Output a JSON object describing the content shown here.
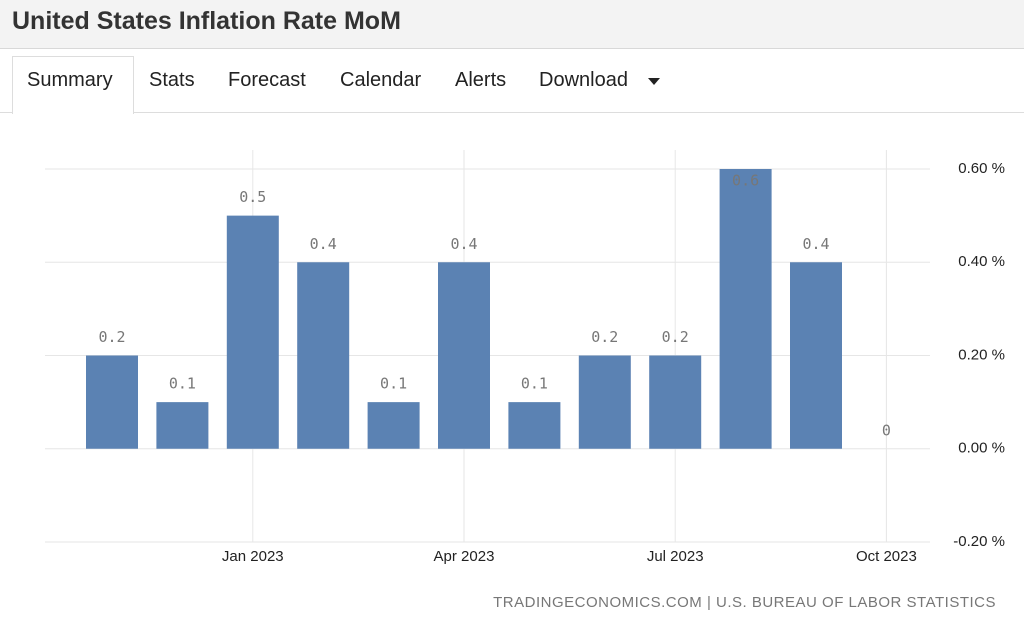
{
  "header": {
    "title": "United States Inflation Rate MoM"
  },
  "tabs": [
    "Summary",
    "Stats",
    "Forecast",
    "Calendar",
    "Alerts",
    "Download"
  ],
  "chart_data": {
    "type": "bar",
    "categories": [
      null,
      null,
      "Jan 2023",
      null,
      null,
      "Apr 2023",
      null,
      null,
      "Jul 2023",
      null,
      null,
      "Oct 2023"
    ],
    "values": [
      0.2,
      0.1,
      0.5,
      0.4,
      0.1,
      0.4,
      0.1,
      0.2,
      0.2,
      0.6,
      0.4,
      0
    ],
    "color": "#5b82b3",
    "ylim": [
      -0.2,
      0.6
    ],
    "yticks": [
      {
        "value": 0.6,
        "label": "0.60 %"
      },
      {
        "value": 0.4,
        "label": "0.40 %"
      },
      {
        "value": 0.2,
        "label": "0.20 %"
      },
      {
        "value": 0,
        "label": "0.00 %"
      },
      {
        "value": -0.2,
        "label": "-0.20 %"
      }
    ],
    "grid": true,
    "source": "TRADINGECONOMICS.COM | U.S. BUREAU OF LABOR STATISTICS"
  }
}
